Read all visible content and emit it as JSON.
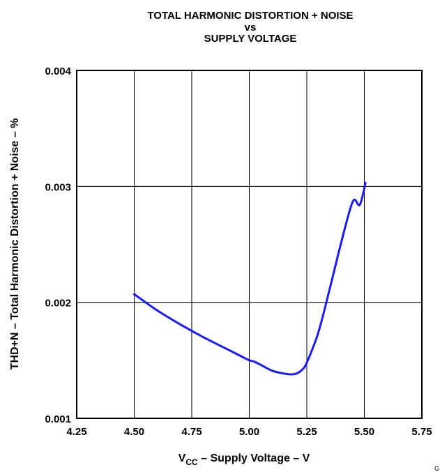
{
  "chart_data": {
    "type": "line",
    "title": [
      "TOTAL HARMONIC DISTORTION + NOISE",
      "vs",
      "SUPPLY VOLTAGE"
    ],
    "xlabel": {
      "main": "V",
      "sub": "CC",
      "rest": " – Supply Voltage – V"
    },
    "ylabel": "THD+N – Total Harmonic Distortion + Noise – %",
    "xlim": [
      4.25,
      5.75
    ],
    "ylim": [
      0.001,
      0.004
    ],
    "x_ticks": [
      4.25,
      4.5,
      4.75,
      5.0,
      5.25,
      5.5,
      5.75
    ],
    "x_tick_labels": [
      "4.25",
      "4.50",
      "4.75",
      "5.00",
      "5.25",
      "5.50",
      "5.75"
    ],
    "y_ticks": [
      0.001,
      0.002,
      0.003,
      0.004
    ],
    "y_tick_labels": [
      "0.001",
      "0.002",
      "0.003",
      "0.004"
    ],
    "grid": true,
    "series": [
      {
        "color": "#1a1aff",
        "x": [
          4.5,
          4.6,
          4.7,
          4.8,
          4.9,
          4.95,
          5.0,
          5.02,
          5.06,
          5.1,
          5.14,
          5.17,
          5.19,
          5.21,
          5.23,
          5.25,
          5.3,
          5.35,
          5.4,
          5.45,
          5.48,
          5.505
        ],
        "y": [
          0.00207,
          0.00193,
          0.00181,
          0.0017,
          0.0016,
          0.00155,
          0.0015,
          0.00149,
          0.00145,
          0.00141,
          0.00139,
          0.00138,
          0.00138,
          0.00139,
          0.00142,
          0.00148,
          0.00174,
          0.00212,
          0.00252,
          0.00287,
          0.00284,
          0.00303
        ]
      }
    ]
  },
  "corner_mark": "G"
}
